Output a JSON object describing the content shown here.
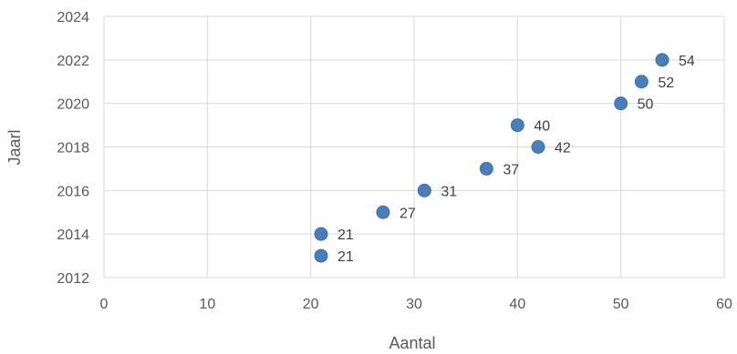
{
  "chart_data": {
    "type": "scatter",
    "title": "",
    "xlabel": "Aantal",
    "ylabel": "Jaarl",
    "xlim": [
      0,
      60
    ],
    "ylim": [
      2012,
      2024
    ],
    "xticks": [
      "0",
      "10",
      "20",
      "30",
      "40",
      "50",
      "60"
    ],
    "yticks": [
      "2012",
      "2014",
      "2016",
      "2018",
      "2020",
      "2022",
      "2024"
    ],
    "grid": true,
    "legend": "none",
    "point_color": "#4a7ebb",
    "series": [
      {
        "points": [
          {
            "x": 21,
            "y": 2013,
            "label": "21"
          },
          {
            "x": 21,
            "y": 2014,
            "label": "21"
          },
          {
            "x": 27,
            "y": 2015,
            "label": "27"
          },
          {
            "x": 31,
            "y": 2016,
            "label": "31"
          },
          {
            "x": 37,
            "y": 2017,
            "label": "37"
          },
          {
            "x": 42,
            "y": 2018,
            "label": "42"
          },
          {
            "x": 40,
            "y": 2019,
            "label": "40"
          },
          {
            "x": 50,
            "y": 2020,
            "label": "50"
          },
          {
            "x": 52,
            "y": 2021,
            "label": "52"
          },
          {
            "x": 54,
            "y": 2022,
            "label": "54"
          }
        ]
      }
    ]
  }
}
